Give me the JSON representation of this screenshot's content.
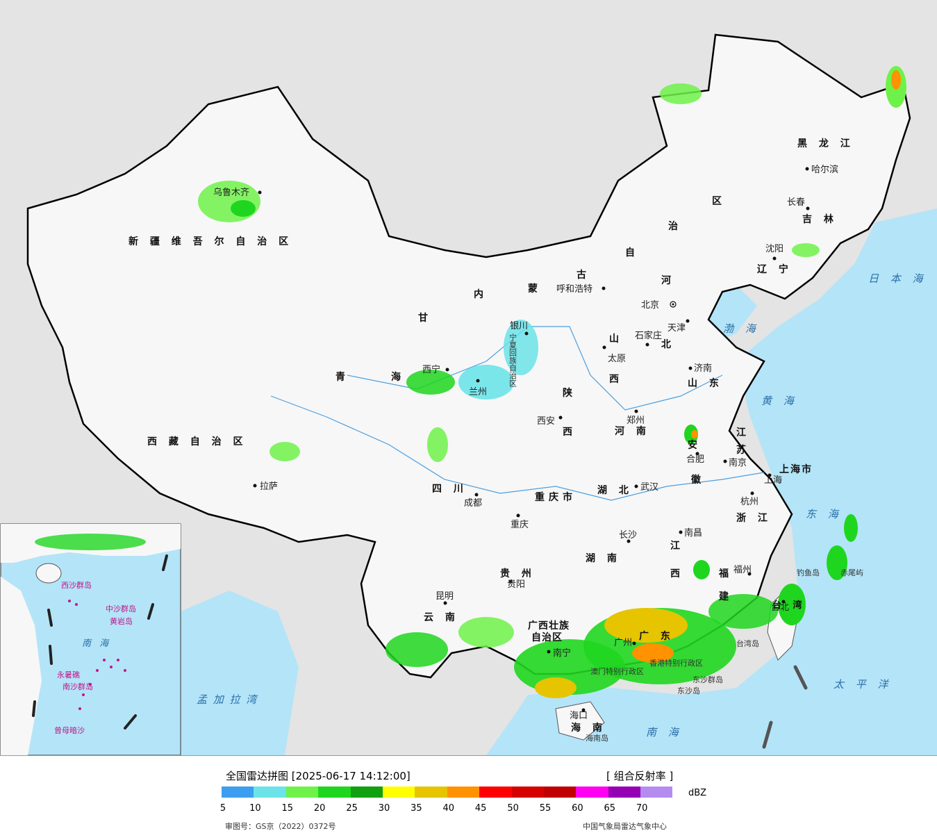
{
  "map": {
    "provinces": {
      "xinjiang": "新 疆 维 吾 尔 自 治 区",
      "xizang": "西 藏 自 治 区",
      "qinghai": "青　　　海",
      "gansu": "甘",
      "neimenggu_1": "内",
      "neimenggu_2": "蒙",
      "neimenggu_3": "古",
      "neimenggu_4": "自",
      "neimenggu_5": "治",
      "neimenggu_6": "区",
      "heilongjiang": "黑 龙 江",
      "jilin": "吉 林",
      "liaoning": "辽 宁",
      "hebei_1": "河",
      "hebei_2": "北",
      "shanxi_1": "山",
      "shanxi_2": "西",
      "shandong": "山 东",
      "shaanxi_1": "陕",
      "shaanxi_2": "西",
      "henan": "河 南",
      "jiangsu_1": "江",
      "jiangsu_2": "苏",
      "anhui_1": "安",
      "anhui_2": "徽",
      "sichuan": "四 川",
      "chongqing": "重庆市",
      "hubei": "湖 北",
      "zhejiang": "浙 江",
      "hunan": "湖 南",
      "jiangxi_1": "江",
      "jiangxi_2": "西",
      "fujian_1": "福",
      "fujian_2": "建",
      "guizhou": "贵 州",
      "yunnan": "云 南",
      "guangxi_1": "广西壮族",
      "guangxi_2": "自治区",
      "guangdong": "广 东",
      "hainan": "海 南",
      "taiwan": "台 湾",
      "shanghai": "上海市",
      "ningxia": "宁夏回族自治区",
      "hongkong": "香港特别行政区",
      "macau": "澳门特别行政区"
    },
    "cities": {
      "urumqi": "乌鲁木齐",
      "lhasa": "拉萨",
      "xining": "西宁",
      "lanzhou": "兰州",
      "yinchuan": "银川",
      "huhehaote": "呼和浩特",
      "beijing": "北京",
      "tianjin": "天津",
      "shijiazhuang": "石家庄",
      "taiyuan": "太原",
      "jinan": "济南",
      "xian": "西安",
      "zhengzhou": "郑州",
      "hefei": "合肥",
      "nanjing": "南京",
      "shanghai": "上海",
      "hangzhou": "杭州",
      "wuhan": "武汉",
      "chengdu": "成都",
      "chongqing": "重庆",
      "changsha": "长沙",
      "nanchang": "南昌",
      "fuzhou": "福州",
      "guiyang": "贵阳",
      "kunming": "昆明",
      "nanning": "南宁",
      "guangzhou": "广州",
      "haikou": "海口",
      "harbin": "哈尔滨",
      "changchun": "长春",
      "shenyang": "沈阳",
      "taipei": "台北"
    },
    "seas": {
      "bohai": "渤 海",
      "huanghai": "黄 海",
      "donghai": "东 海",
      "nanhai": "南 海",
      "taipingyang": "太 平 洋",
      "ribenhai": "日 本 海",
      "mengjialawan": "孟 加 拉 湾"
    },
    "islands": {
      "diaoyudao": "钓鱼岛",
      "chiweiyu": "赤尾屿",
      "taiwandao": "台湾岛",
      "dongshaqundao": "东沙群岛",
      "dongshadao": "东沙岛",
      "hainandao": "海南岛"
    },
    "inset": {
      "nanhai": "南 海",
      "xisha": "西沙群岛",
      "zhongsha": "中沙群岛",
      "huangyandao": "黄岩岛",
      "nansha": "南沙群岛",
      "yongshujiao": "永暑礁",
      "zengmuansha": "曾母暗沙"
    }
  },
  "legend": {
    "title": "全国雷达拼图 [2025-06-17 14:12:00]",
    "product": "[ 组合反射率 ]",
    "unit": "dBZ",
    "ticks": [
      "5",
      "10",
      "15",
      "20",
      "25",
      "30",
      "35",
      "40",
      "45",
      "50",
      "55",
      "60",
      "65",
      "70"
    ],
    "colors": [
      "#3d9ef0",
      "#6be3e8",
      "#6ef24a",
      "#1fd61f",
      "#10a010",
      "#ffff00",
      "#e6c400",
      "#ff9200",
      "#ff0000",
      "#d60000",
      "#c00000",
      "#ff00f0",
      "#9600b4",
      "#b48cf0"
    ],
    "approval": "审图号：GS京（2022）0372号",
    "source": "中国气象局雷达气象中心"
  }
}
